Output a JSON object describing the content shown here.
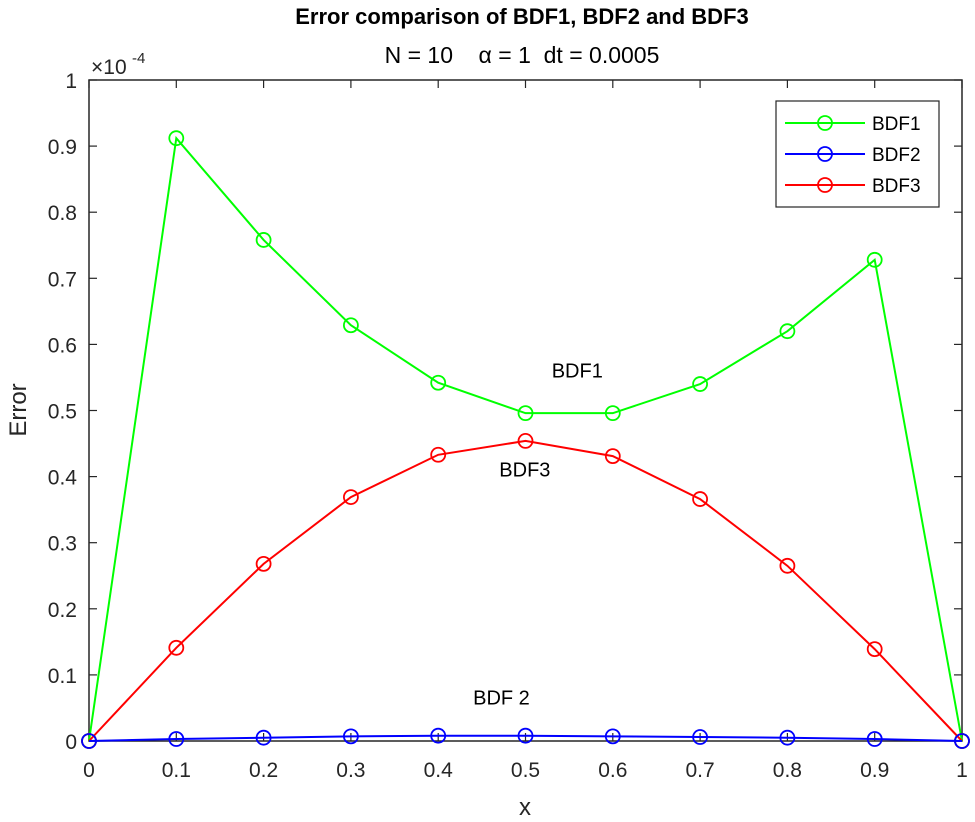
{
  "chart_data": {
    "type": "line",
    "title": "Error comparison of BDF1, BDF2 and BDF3",
    "subtitle": "N = 10    α = 1  dt = 0.0005",
    "xlabel": "x",
    "ylabel": "Error",
    "y_exponent_label": "×10^-4",
    "xlim": [
      0,
      1
    ],
    "ylim": [
      0,
      1
    ],
    "xticks": [
      "0",
      "0.1",
      "0.2",
      "0.3",
      "0.4",
      "0.5",
      "0.6",
      "0.7",
      "0.8",
      "0.9",
      "1"
    ],
    "yticks": [
      "0",
      "0.1",
      "0.2",
      "0.3",
      "0.4",
      "0.5",
      "0.6",
      "0.7",
      "0.8",
      "0.9",
      "1"
    ],
    "grid": false,
    "legend_position": "upper right",
    "x": [
      0,
      0.1,
      0.2,
      0.3,
      0.4,
      0.5,
      0.6,
      0.7,
      0.8,
      0.9,
      1.0
    ],
    "series": [
      {
        "name": "BDF1",
        "color": "#00ff00",
        "marker": "circle",
        "values": [
          0,
          0.912,
          0.758,
          0.629,
          0.542,
          0.496,
          0.496,
          0.54,
          0.62,
          0.728,
          0
        ]
      },
      {
        "name": "BDF2",
        "color": "#0000ff",
        "marker": "circle",
        "values": [
          0,
          0.003,
          0.005,
          0.007,
          0.008,
          0.008,
          0.007,
          0.006,
          0.005,
          0.003,
          0
        ]
      },
      {
        "name": "BDF3",
        "color": "#ff0000",
        "marker": "circle",
        "values": [
          0,
          0.141,
          0.268,
          0.369,
          0.433,
          0.454,
          0.431,
          0.366,
          0.265,
          0.139,
          0
        ]
      }
    ],
    "annotations": [
      {
        "text": "BDF1",
        "x": 0.53,
        "y": 0.55
      },
      {
        "text": "BDF3",
        "x": 0.47,
        "y": 0.4
      },
      {
        "text": "BDF 2",
        "x": 0.44,
        "y": 0.055
      }
    ]
  },
  "legend": {
    "items": [
      {
        "label": "BDF1",
        "color": "#00ff00"
      },
      {
        "label": "BDF2",
        "color": "#0000ff"
      },
      {
        "label": "BDF3",
        "color": "#ff0000"
      }
    ]
  }
}
